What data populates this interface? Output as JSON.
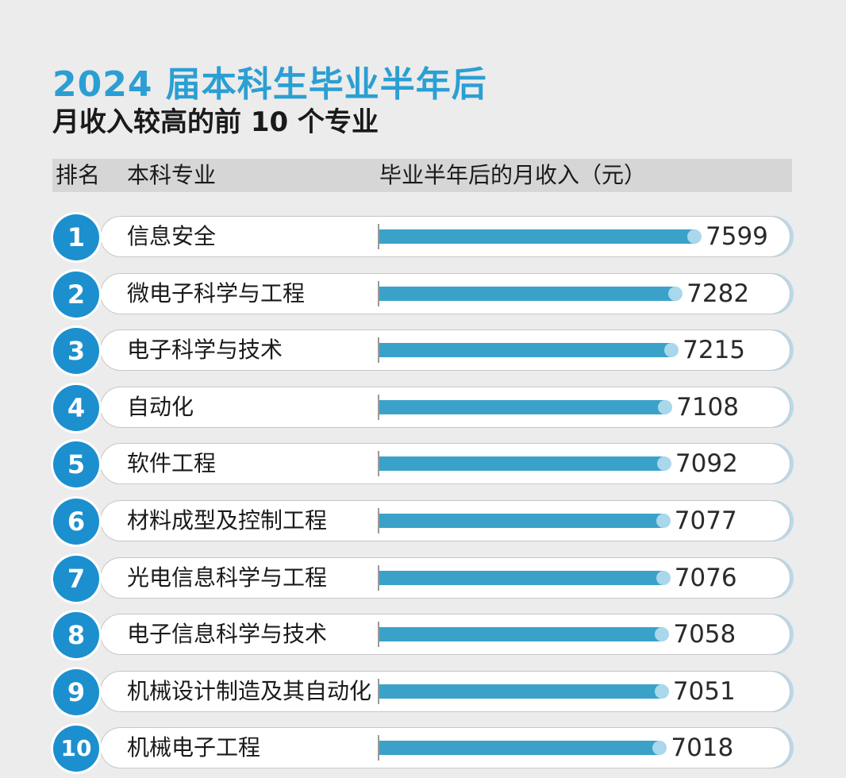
{
  "header": {
    "title_line1": "2024 届本科生毕业半年后",
    "title_line2": "月收入较高的前 10 个专业"
  },
  "table_header": {
    "rank": "排名",
    "major": "本科专业",
    "income": "毕业半年后的月收入（元）"
  },
  "chart_data": {
    "type": "bar",
    "orientation": "horizontal",
    "title": "2024 届本科生毕业半年后 月收入较高的前 10 个专业",
    "xlabel": "毕业半年后的月收入（元）",
    "ylabel": "本科专业",
    "ranks": [
      "1",
      "2",
      "3",
      "4",
      "5",
      "6",
      "7",
      "8",
      "9",
      "10"
    ],
    "categories": [
      "信息安全",
      "微电子科学与工程",
      "电子科学与技术",
      "自动化",
      "软件工程",
      "材料成型及控制工程",
      "光电信息科学与工程",
      "电子信息科学与技术",
      "机械设计制造及其自动化",
      "机械电子工程"
    ],
    "values": [
      7599,
      7282,
      7215,
      7108,
      7092,
      7077,
      7076,
      7058,
      7051,
      7018
    ],
    "labels": [
      "7599",
      "7282",
      "7215",
      "7108",
      "7092",
      "7077",
      "7076",
      "7058",
      "7051",
      "7018"
    ],
    "colors": {
      "bar": "#3aa2c9",
      "badge": "#1c8fcf",
      "title": "#2b9fd3"
    }
  }
}
